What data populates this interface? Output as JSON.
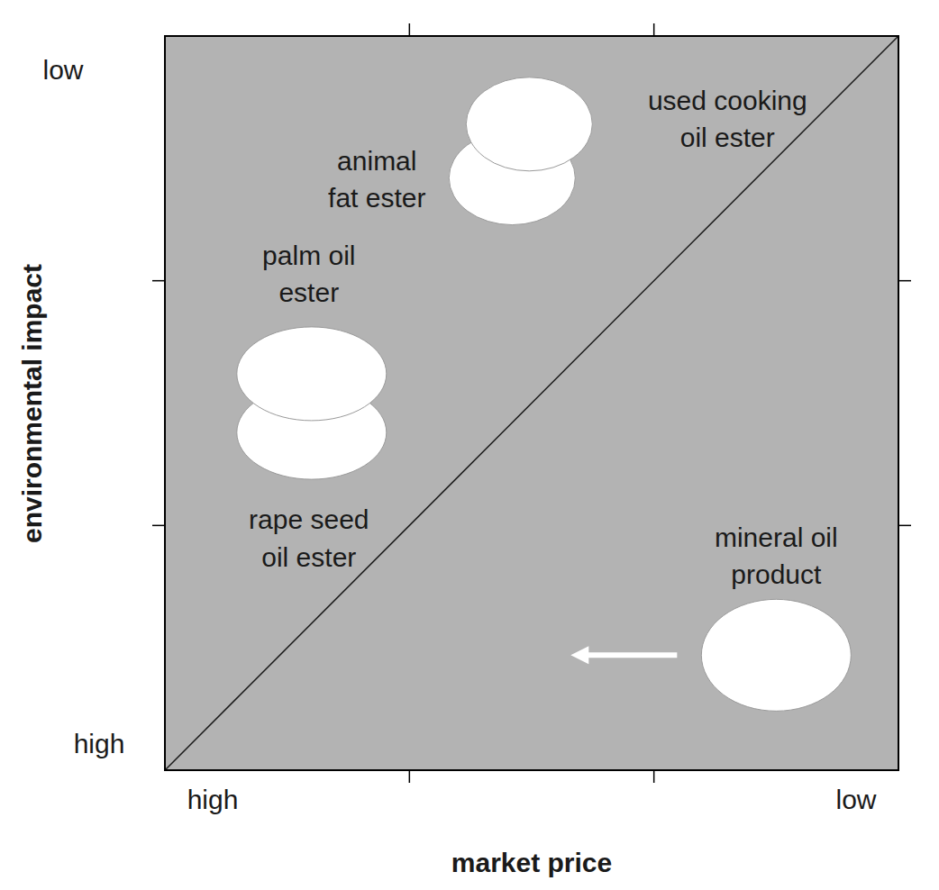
{
  "chart_data": {
    "type": "scatter",
    "x_label": "market price",
    "y_label": "environmental impact",
    "x_end_labels": [
      "high",
      "low"
    ],
    "y_end_labels": [
      "high",
      "low"
    ],
    "xlim": [
      0,
      3
    ],
    "ylim": [
      0,
      3
    ],
    "xticks": [
      1,
      2
    ],
    "yticks": [
      1,
      2
    ],
    "tick_labels": false,
    "grid": false,
    "series": [
      {
        "name": "rape seed\noil ester",
        "color": "#ffffff",
        "x": [
          0.6
        ],
        "values": [
          1.38
        ]
      },
      {
        "name": "palm oil\nester",
        "color": "#ffffff",
        "x": [
          0.6
        ],
        "values": [
          1.62
        ]
      },
      {
        "name": "animal\nfat ester",
        "color": "#ffffff",
        "x": [
          1.42
        ],
        "values": [
          2.42
        ]
      },
      {
        "name": "used cooking\noil ester",
        "color": "#ffffff",
        "x": [
          1.49
        ],
        "values": [
          2.64
        ]
      },
      {
        "name": "mineral oil\nproduct",
        "color": "#ffffff",
        "x": [
          2.5
        ],
        "values": [
          0.47
        ]
      }
    ]
  }
}
